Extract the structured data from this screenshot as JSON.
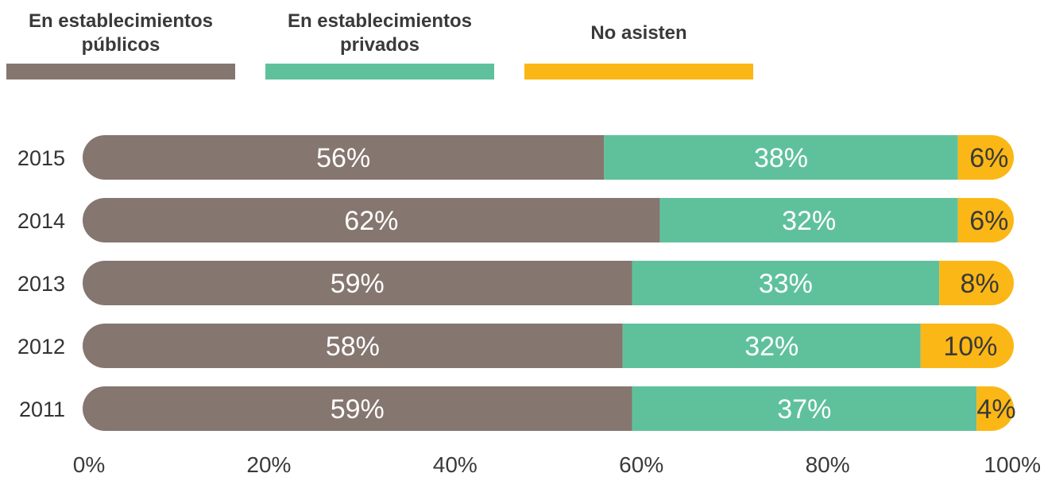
{
  "chart_data": {
    "type": "bar",
    "orientation": "horizontal",
    "stacked": true,
    "categories": [
      "2015",
      "2014",
      "2013",
      "2012",
      "2011"
    ],
    "series": [
      {
        "name": "En establecimientos públicos",
        "values": [
          56,
          62,
          59,
          58,
          59
        ],
        "labels": [
          "56%",
          "62%",
          "59%",
          "58%",
          "59%"
        ],
        "color": "#85766f",
        "label_color": "#ffffff"
      },
      {
        "name": "En establecimientos privados",
        "values": [
          38,
          32,
          33,
          32,
          37
        ],
        "labels": [
          "38%",
          "32%",
          "33%",
          "32%",
          "37%"
        ],
        "color": "#5fc19c",
        "label_color": "#ffffff"
      },
      {
        "name": "No asisten",
        "values": [
          6,
          6,
          8,
          10,
          4
        ],
        "labels": [
          "6%",
          "6%",
          "8%",
          "10%",
          "4%"
        ],
        "color": "#fbb715",
        "label_color": "#3a3a3a"
      }
    ],
    "x_ticks": [
      "0%",
      "20%",
      "40%",
      "60%",
      "80%",
      "100%"
    ],
    "xlim": [
      0,
      100
    ],
    "legend_position": "top",
    "grid": false
  },
  "legend": [
    {
      "label": "En establecimientos públicos",
      "color": "#85766f"
    },
    {
      "label": "En establecimientos privados",
      "color": "#5fc19c"
    },
    {
      "label": "No asisten",
      "color": "#fbb715"
    }
  ]
}
